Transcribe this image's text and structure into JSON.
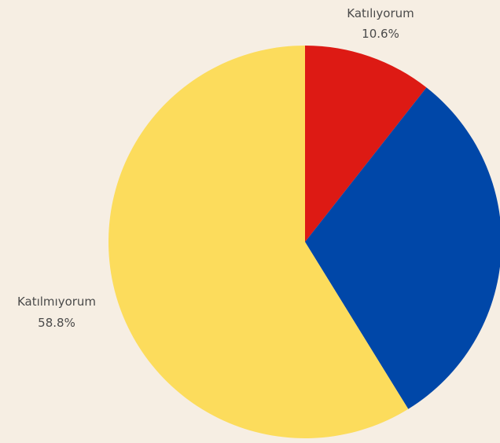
{
  "chart_data": {
    "type": "pie",
    "slices": [
      {
        "label": "Katılıyorum",
        "value": 10.6,
        "value_label": "10.6%",
        "color": "#dd1a14",
        "show_label": true
      },
      {
        "label": "",
        "value": 30.6,
        "value_label": "",
        "color": "#0047a8",
        "show_label": false
      },
      {
        "label": "Katılmıyorum",
        "value": 58.8,
        "value_label": "58.8%",
        "color": "#fcdc5c",
        "show_label": true
      }
    ],
    "start_angle_deg": 0,
    "direction": "clockwise",
    "background": "#f6eee3"
  }
}
